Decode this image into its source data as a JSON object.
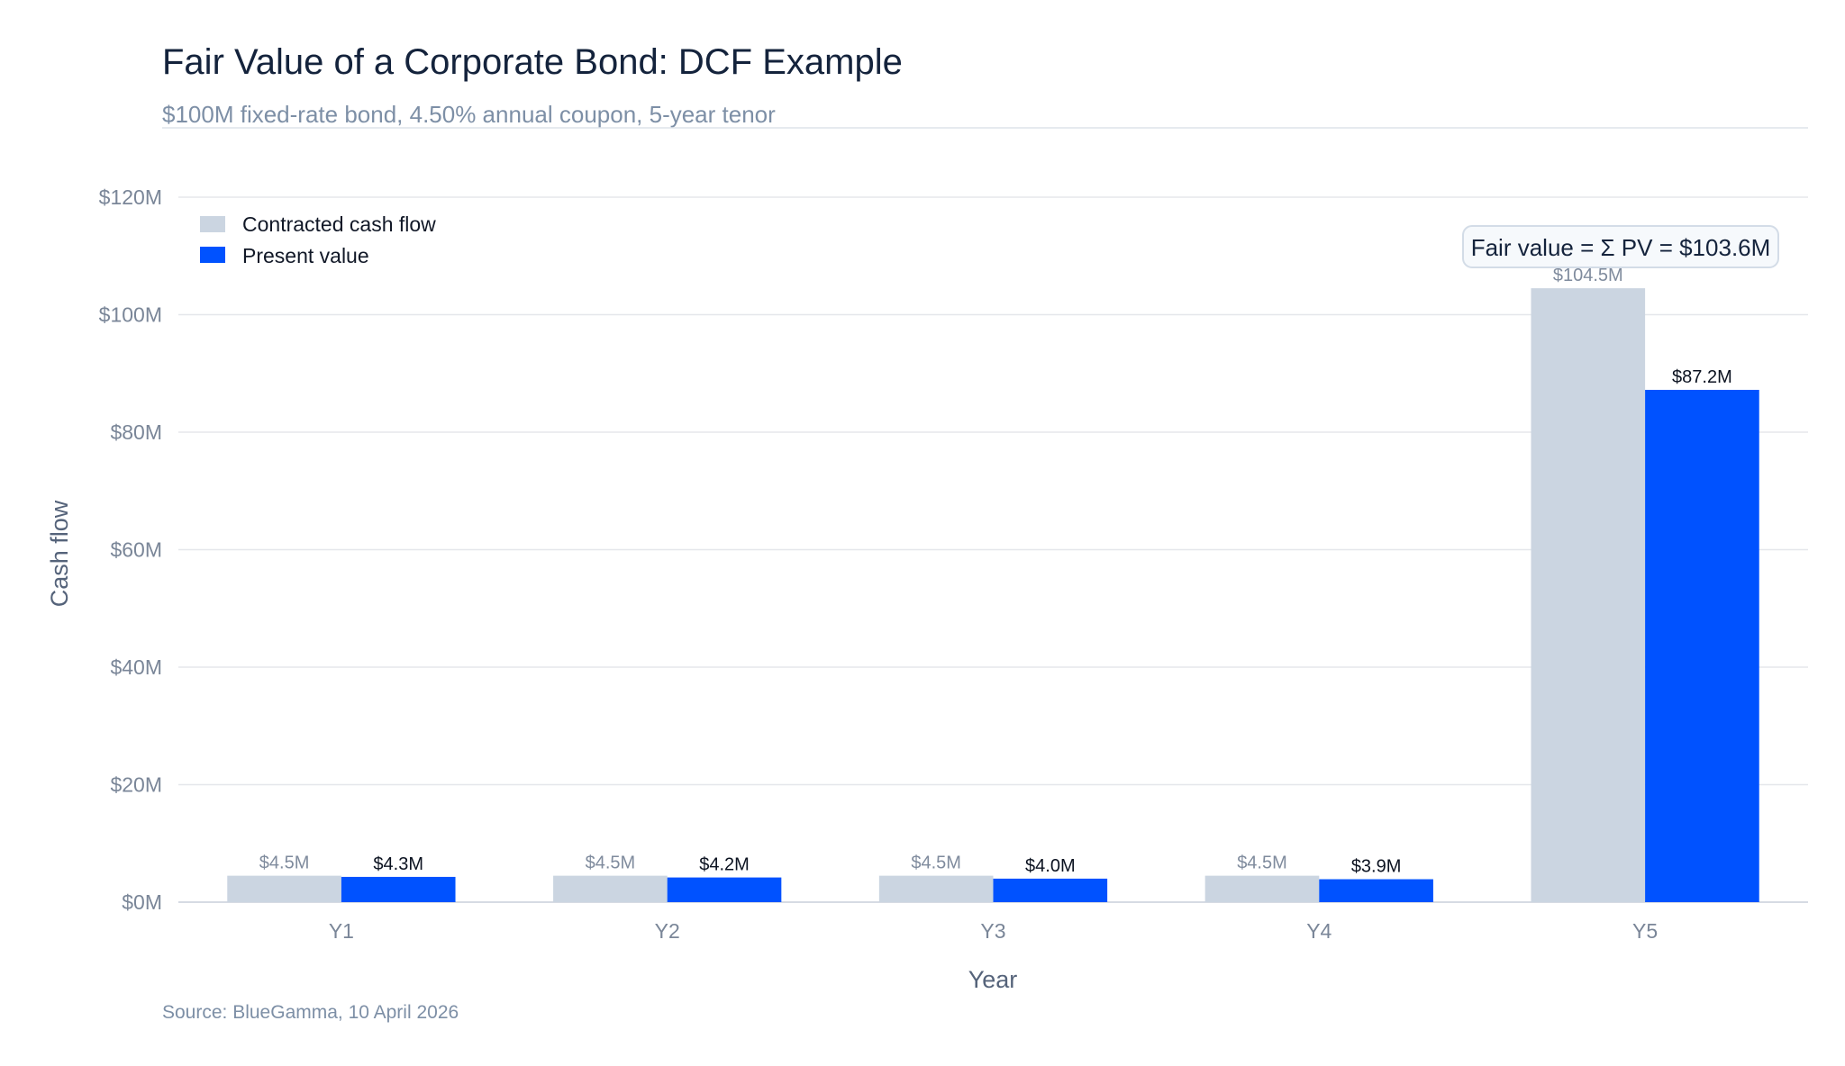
{
  "title": "Fair Value of a Corporate Bond: DCF Example",
  "subtitle": "$100M fixed-rate bond, 4.50% annual coupon, 5-year tenor",
  "source": "Source: BlueGamma, 10 April 2026",
  "fair_value_label": "Fair value = Σ PV = $103.6M",
  "colors": {
    "contracted": "#cbd5e1",
    "present_value": "#0052ff",
    "grid": "#e5e7eb",
    "axis": "#d6dbe3"
  },
  "chart_data": {
    "type": "bar",
    "title": "Fair Value of a Corporate Bond: DCF Example",
    "subtitle": "$100M fixed-rate bond, 4.50% annual coupon, 5-year tenor",
    "xlabel": "Year",
    "ylabel": "Cash flow",
    "categories": [
      "Y1",
      "Y2",
      "Y3",
      "Y4",
      "Y5"
    ],
    "series": [
      {
        "name": "Contracted cash flow",
        "values": [
          4.5,
          4.5,
          4.5,
          4.5,
          104.5
        ],
        "labels": [
          "$4.5M",
          "$4.5M",
          "$4.5M",
          "$4.5M",
          "$104.5M"
        ]
      },
      {
        "name": "Present value",
        "values": [
          4.3,
          4.2,
          4.0,
          3.9,
          87.2
        ],
        "labels": [
          "$4.3M",
          "$4.2M",
          "$4.0M",
          "$3.9M",
          "$87.2M"
        ]
      }
    ],
    "ylim": [
      0,
      120
    ],
    "yticks": [
      0,
      20,
      40,
      60,
      80,
      100,
      120
    ],
    "ytick_labels": [
      "$0M",
      "$20M",
      "$40M",
      "$60M",
      "$80M",
      "$100M",
      "$120M"
    ],
    "grid": true,
    "legend_position": "top-left"
  }
}
